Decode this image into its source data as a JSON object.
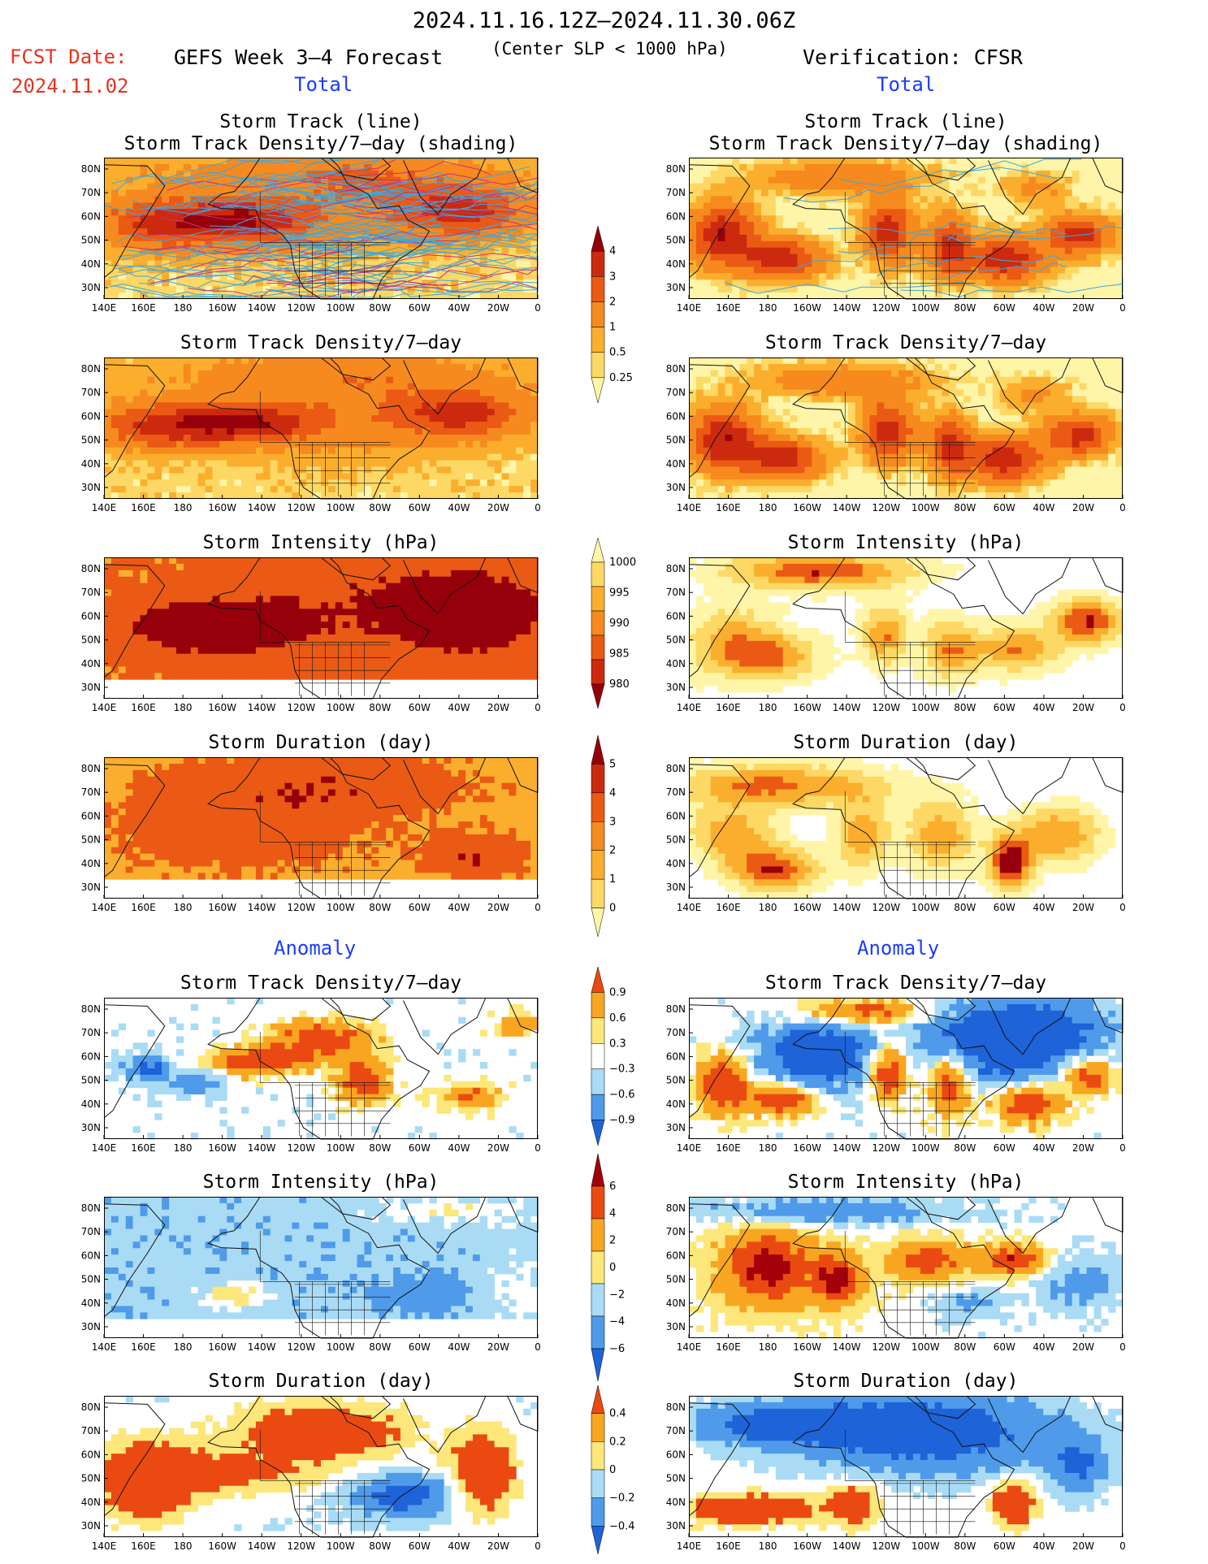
{
  "header": {
    "title": "2024.11.16.12Z–2024.11.30.06Z",
    "subtitle": "(Center SLP < 1000 hPa)",
    "fcst_label": "FCST Date:",
    "fcst_date": "2024.11.02",
    "model_title": "GEFS Week 3–4 Forecast",
    "verification_title": "Verification: CFSR"
  },
  "sections": {
    "total_left": "Total",
    "total_right": "Total",
    "anomaly_left": "Anomaly",
    "anomaly_right": "Anomaly"
  },
  "colors": {
    "title_red": "#e8321e",
    "section_blue": "#1a3cff",
    "total_scale": [
      "#ffffff",
      "#fff5a8",
      "#fdd865",
      "#fbae2d",
      "#f68a1e",
      "#ea5a14",
      "#cc2a0e",
      "#96000a"
    ],
    "anomaly_scale": [
      "#1e63d8",
      "#4f9bea",
      "#a9dbf5",
      "#ffffff",
      "#fde77a",
      "#f8a621",
      "#ea4a12",
      "#a3000a"
    ]
  },
  "axes": {
    "lon_ticks": [
      "140E",
      "160E",
      "180",
      "160W",
      "140W",
      "120W",
      "100W",
      "80W",
      "60W",
      "40W",
      "20W",
      "0"
    ],
    "lat_ticks": [
      "30N",
      "40N",
      "50N",
      "60N",
      "70N",
      "80N"
    ]
  },
  "panels": [
    {
      "id": "fc-track",
      "title": "Storm Track (line)\nStorm Track Density/7–day (shading)",
      "col": "left",
      "row": 0
    },
    {
      "id": "obs-track",
      "title": "Storm Track (line)\nStorm Track Density/7–day (shading)",
      "col": "right",
      "row": 0
    },
    {
      "id": "fc-density",
      "title": "Storm Track Density/7–day",
      "col": "left",
      "row": 1
    },
    {
      "id": "obs-density",
      "title": "Storm Track Density/7–day",
      "col": "right",
      "row": 1
    },
    {
      "id": "fc-intensity",
      "title": "Storm Intensity (hPa)",
      "col": "left",
      "row": 2
    },
    {
      "id": "obs-intensity",
      "title": "Storm Intensity (hPa)",
      "col": "right",
      "row": 2
    },
    {
      "id": "fc-duration",
      "title": "Storm Duration (day)",
      "col": "left",
      "row": 3
    },
    {
      "id": "obs-duration",
      "title": "Storm Duration (day)",
      "col": "right",
      "row": 3
    },
    {
      "id": "fc-density-anom",
      "title": "Storm Track Density/7–day",
      "col": "left",
      "row": 4
    },
    {
      "id": "obs-density-anom",
      "title": "Storm Track Density/7–day",
      "col": "right",
      "row": 4
    },
    {
      "id": "fc-intensity-anom",
      "title": "Storm Intensity (hPa)",
      "col": "left",
      "row": 5
    },
    {
      "id": "obs-intensity-anom",
      "title": "Storm Intensity (hPa)",
      "col": "right",
      "row": 5
    },
    {
      "id": "fc-duration-anom",
      "title": "Storm Duration (day)",
      "col": "left",
      "row": 6
    },
    {
      "id": "obs-duration-anom",
      "title": "Storm Duration (day)",
      "col": "right",
      "row": 6
    }
  ],
  "colorbars": [
    {
      "id": "density",
      "labels": [
        "4",
        "3",
        "2",
        "1",
        "0.5",
        "0.25"
      ]
    },
    {
      "id": "intensity",
      "labels": [
        "1000",
        "995",
        "990",
        "985",
        "980"
      ]
    },
    {
      "id": "duration",
      "labels": [
        "5",
        "4",
        "3",
        "2",
        "1",
        "0"
      ]
    },
    {
      "id": "density-anom",
      "labels": [
        "0.9",
        "0.6",
        "0.3",
        "−0.3",
        "−0.6",
        "−0.9"
      ]
    },
    {
      "id": "intensity-anom",
      "labels": [
        "6",
        "4",
        "2",
        "0",
        "−2",
        "−4",
        "−6"
      ]
    },
    {
      "id": "duration-anom",
      "labels": [
        "0.4",
        "0.2",
        "0",
        "−0.2",
        "−0.4"
      ]
    }
  ]
}
